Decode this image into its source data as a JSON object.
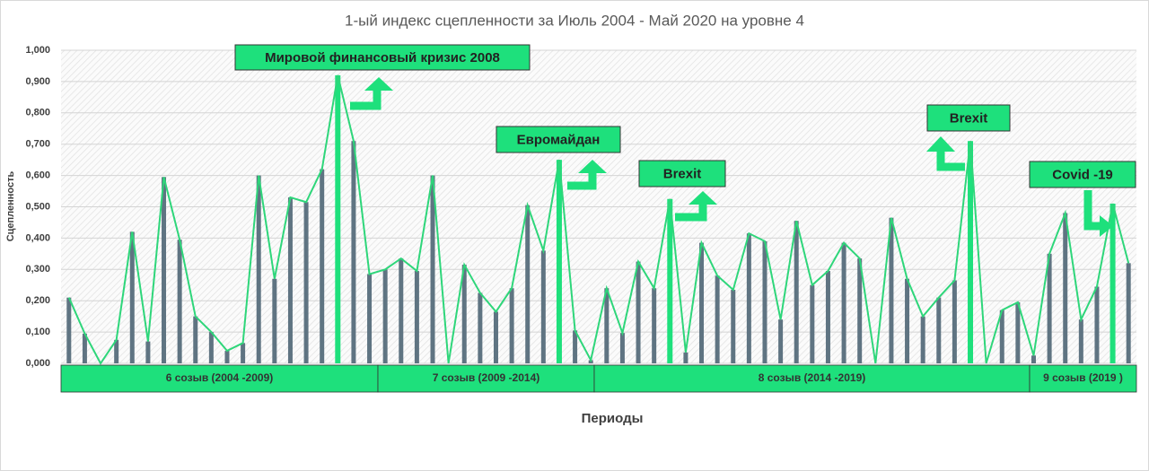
{
  "chart_data": {
    "type": "bar",
    "title": "1-ый индекс сцепленности за Июль 2004 - Май 2020 на уровне 4",
    "x_label": "Периоды",
    "y_label": "Сцепленность",
    "categories": [
      null,
      null,
      null,
      null,
      null,
      null,
      null,
      null,
      null,
      null,
      null,
      null,
      null,
      null,
      null,
      null,
      null,
      null,
      null,
      null,
      null,
      null,
      null,
      null,
      null,
      null,
      null,
      null,
      null,
      null,
      null,
      null,
      null,
      null,
      null,
      null,
      null,
      null,
      null,
      null,
      null,
      null,
      null,
      null,
      null,
      null,
      null,
      null,
      null,
      null,
      null,
      null,
      null,
      null,
      null,
      null,
      null,
      null,
      null,
      null,
      null,
      null,
      null,
      null,
      null,
      null,
      null,
      null
    ],
    "values": [
      0.21,
      0.095,
      0,
      0.075,
      0.42,
      0.07,
      0.595,
      0.395,
      0.15,
      0.1,
      0.04,
      0.065,
      0.6,
      0.27,
      0.53,
      0.515,
      0.62,
      0.92,
      0.71,
      0.285,
      0.3,
      0.335,
      0.295,
      0.6,
      0,
      0.315,
      0.225,
      0.165,
      0.24,
      0.505,
      0.36,
      0.65,
      0.105,
      0.01,
      0.24,
      0.097,
      0.325,
      0.24,
      0.525,
      0.035,
      0.385,
      0.28,
      0.235,
      0.415,
      0.39,
      0.14,
      0.455,
      0.25,
      0.295,
      0.385,
      0.335,
      0,
      0.465,
      0.27,
      0.15,
      0.21,
      0.265,
      0.71,
      0,
      0.17,
      0.195,
      0.025,
      0.35,
      0.48,
      0.14,
      0.245,
      0.51,
      0.32
    ],
    "bar_color": "#5f7482",
    "highlight_color": "#1ee07c",
    "highlight_bars": [
      17,
      31,
      38,
      57,
      66
    ],
    "line_color": "#2ed67a",
    "ylim": [
      0,
      1
    ],
    "yticks": [
      {
        "value": 0,
        "label": "0,000"
      },
      {
        "value": 0.1,
        "label": "0,100"
      },
      {
        "value": 0.2,
        "label": "0,200"
      },
      {
        "value": 0.3,
        "label": "0,300"
      },
      {
        "value": 0.4,
        "label": "0,400"
      },
      {
        "value": 0.5,
        "label": "0,500"
      },
      {
        "value": 0.6,
        "label": "0,600"
      },
      {
        "value": 0.7,
        "label": "0,700"
      },
      {
        "value": 0.8,
        "label": "0,800"
      },
      {
        "value": 0.9,
        "label": "0,900"
      },
      {
        "value": 1,
        "label": "1,000"
      }
    ],
    "grid": true,
    "annotations": [
      "Мировой финансовый кризис 2008",
      "Евромайдан",
      "Brexit",
      "Brexit",
      "Covid -19"
    ],
    "periods": [
      "6 созыв (2004 -2009)",
      "7 созыв (2009 -2014)",
      "8 созыв (2014 -2019)",
      "9 созыв (2019 )"
    ]
  }
}
